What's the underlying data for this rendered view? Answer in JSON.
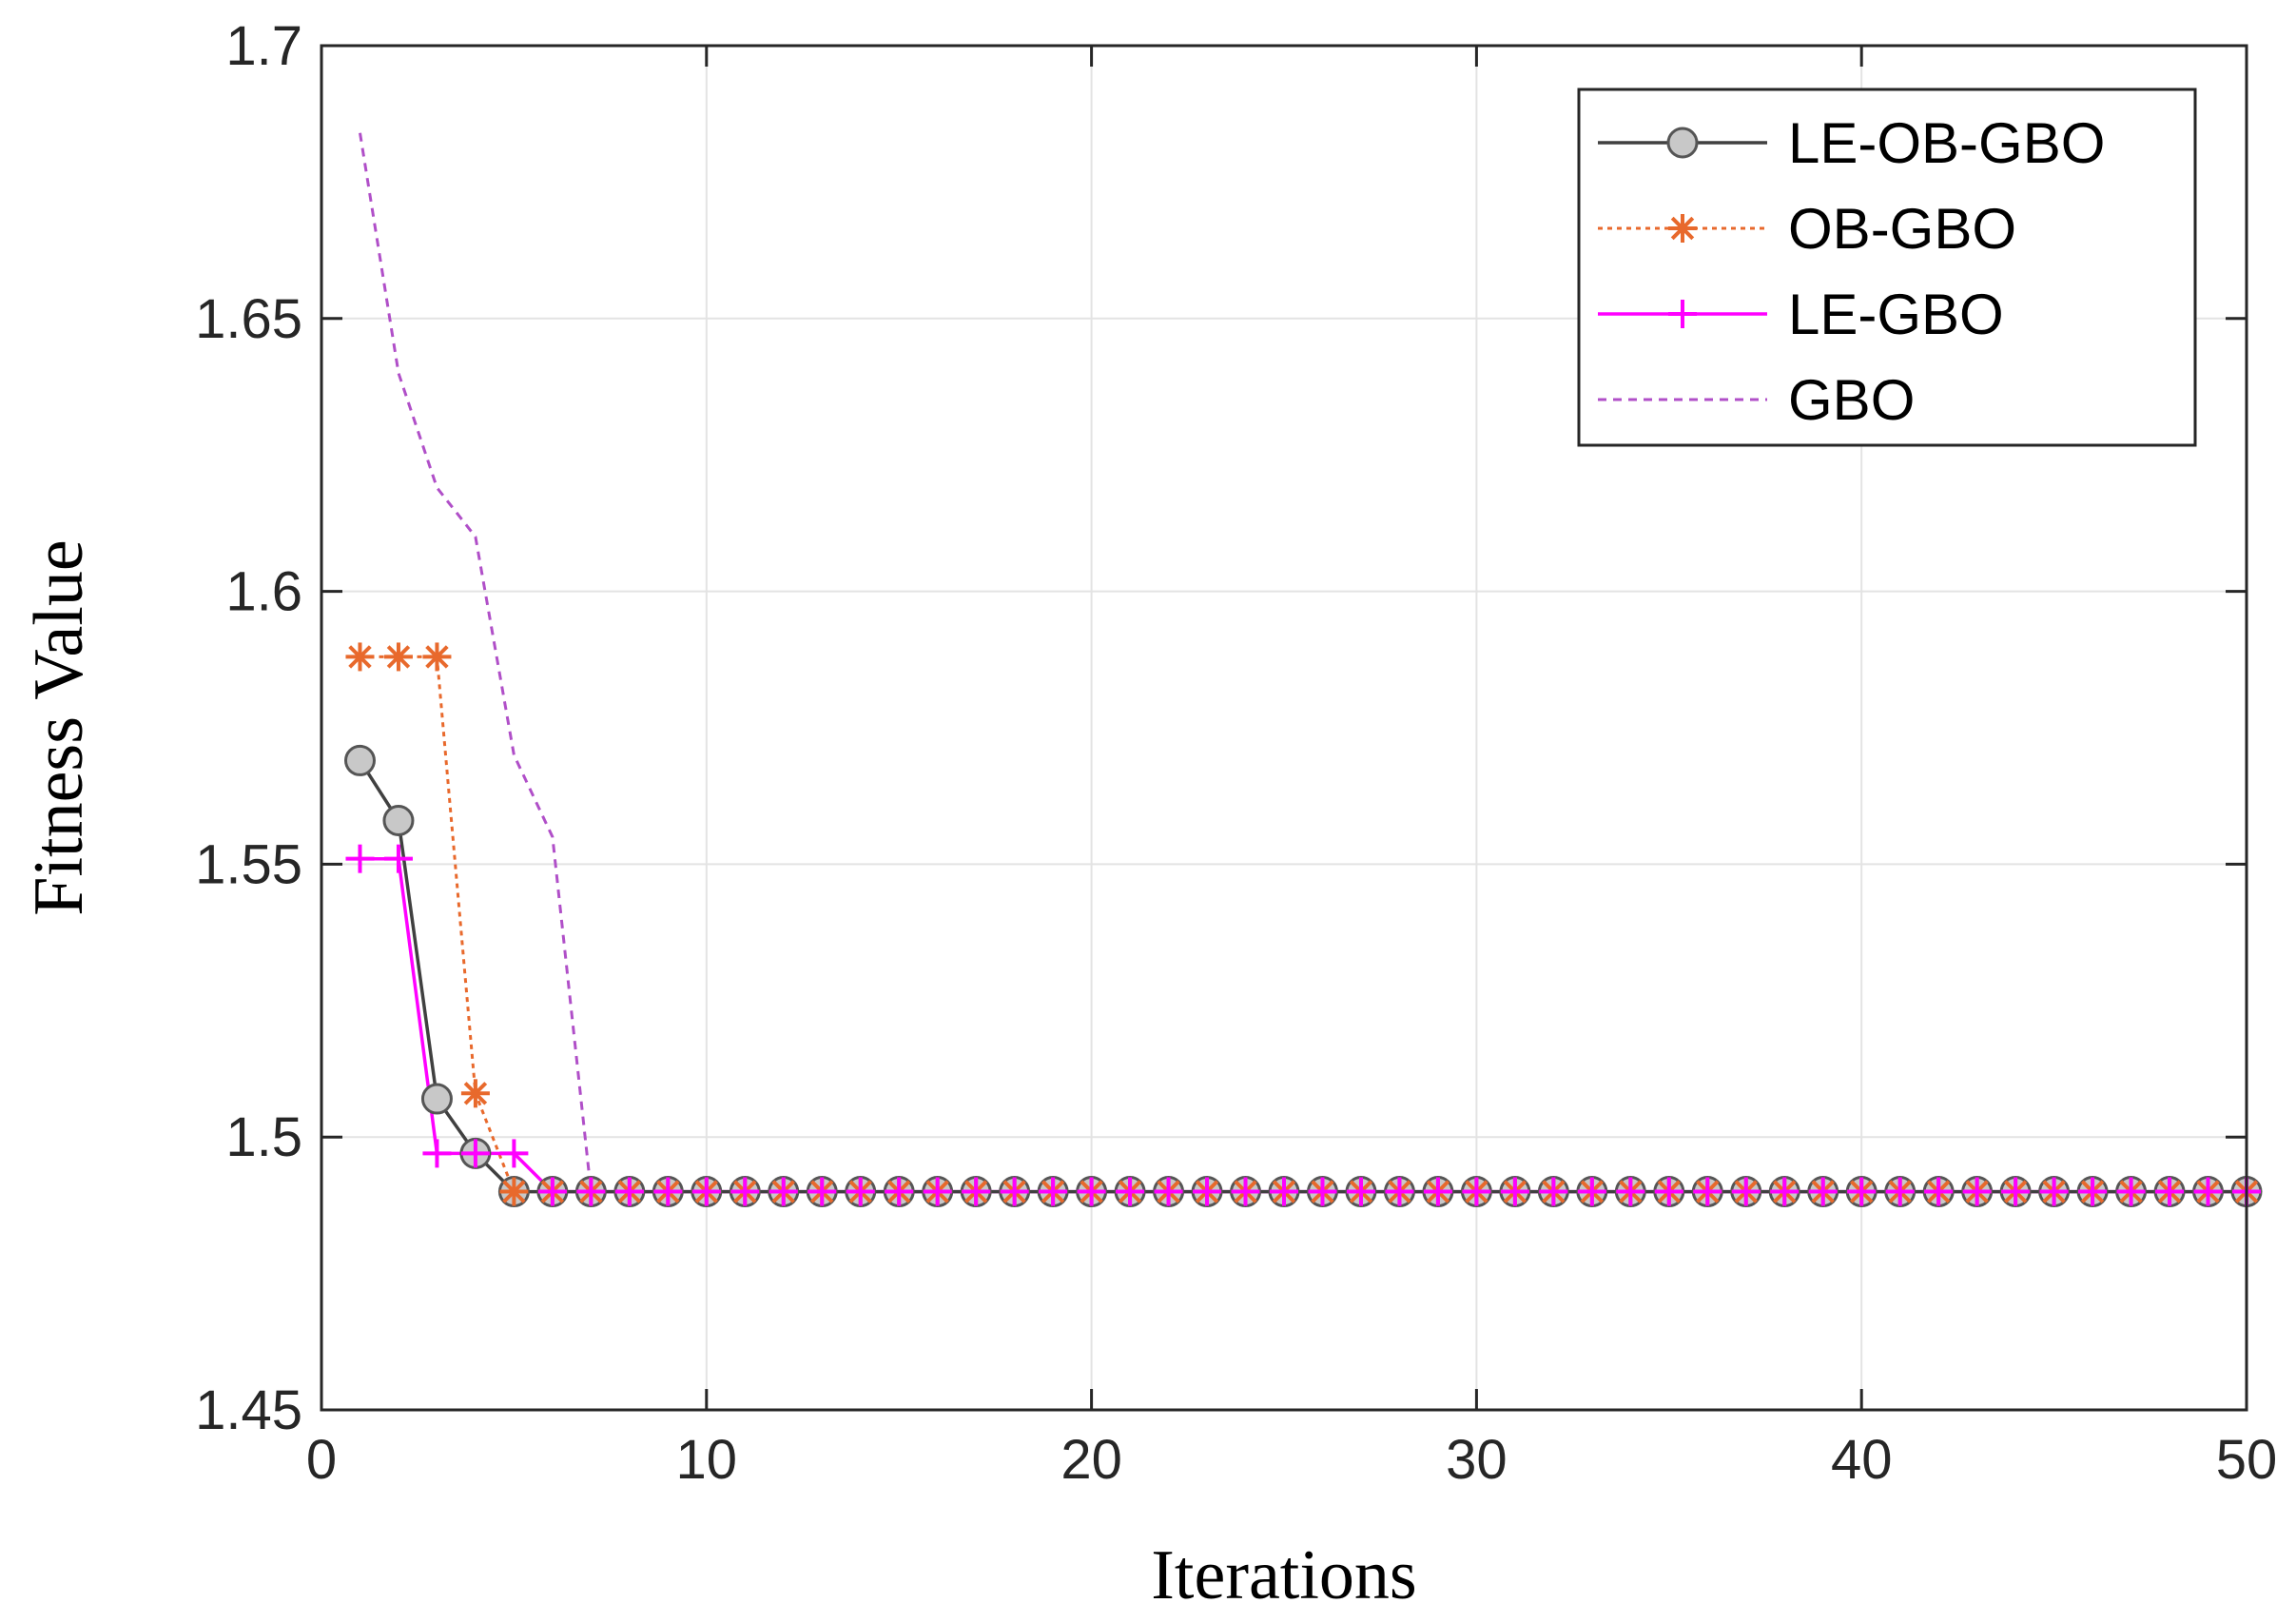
{
  "chart_data": {
    "type": "line",
    "title": "",
    "xlabel": "Iterations",
    "ylabel": "Fitness Value",
    "xlim": [
      0,
      50
    ],
    "ylim": [
      1.45,
      1.7
    ],
    "xticks": [
      0,
      10,
      20,
      30,
      40,
      50
    ],
    "xtick_labels": [
      "0",
      "10",
      "20",
      "30",
      "40",
      "50"
    ],
    "yticks": [
      1.45,
      1.5,
      1.55,
      1.6,
      1.65,
      1.7
    ],
    "ytick_labels": [
      "1.45",
      "1.5",
      "1.55",
      "1.6",
      "1.65",
      "1.7"
    ],
    "grid": true,
    "legend_position": "top-right",
    "x": [
      1,
      2,
      3,
      4,
      5,
      6,
      7,
      8,
      9,
      10,
      11,
      12,
      13,
      14,
      15,
      16,
      17,
      18,
      19,
      20,
      21,
      22,
      23,
      24,
      25,
      26,
      27,
      28,
      29,
      30,
      31,
      32,
      33,
      34,
      35,
      36,
      37,
      38,
      39,
      40,
      41,
      42,
      43,
      44,
      45,
      46,
      47,
      48,
      49,
      50
    ],
    "series": [
      {
        "name": "LE-OB-GBO",
        "color": "#404040",
        "line_style": "solid",
        "marker": "circle",
        "values": [
          1.569,
          1.558,
          1.507,
          1.497,
          1.49,
          1.49,
          1.49,
          1.49,
          1.49,
          1.49,
          1.49,
          1.49,
          1.49,
          1.49,
          1.49,
          1.49,
          1.49,
          1.49,
          1.49,
          1.49,
          1.49,
          1.49,
          1.49,
          1.49,
          1.49,
          1.49,
          1.49,
          1.49,
          1.49,
          1.49,
          1.49,
          1.49,
          1.49,
          1.49,
          1.49,
          1.49,
          1.49,
          1.49,
          1.49,
          1.49,
          1.49,
          1.49,
          1.49,
          1.49,
          1.49,
          1.49,
          1.49,
          1.49,
          1.49,
          1.49
        ]
      },
      {
        "name": "OB-GBO",
        "color": "#E8692C",
        "line_style": "dotted",
        "marker": "asterisk",
        "values": [
          1.588,
          1.588,
          1.588,
          1.508,
          1.49,
          1.49,
          1.49,
          1.49,
          1.49,
          1.49,
          1.49,
          1.49,
          1.49,
          1.49,
          1.49,
          1.49,
          1.49,
          1.49,
          1.49,
          1.49,
          1.49,
          1.49,
          1.49,
          1.49,
          1.49,
          1.49,
          1.49,
          1.49,
          1.49,
          1.49,
          1.49,
          1.49,
          1.49,
          1.49,
          1.49,
          1.49,
          1.49,
          1.49,
          1.49,
          1.49,
          1.49,
          1.49,
          1.49,
          1.49,
          1.49,
          1.49,
          1.49,
          1.49,
          1.49,
          1.49
        ]
      },
      {
        "name": "LE-GBO",
        "color": "#FF00FF",
        "line_style": "solid",
        "marker": "plus",
        "values": [
          1.551,
          1.551,
          1.497,
          1.497,
          1.497,
          1.49,
          1.49,
          1.49,
          1.49,
          1.49,
          1.49,
          1.49,
          1.49,
          1.49,
          1.49,
          1.49,
          1.49,
          1.49,
          1.49,
          1.49,
          1.49,
          1.49,
          1.49,
          1.49,
          1.49,
          1.49,
          1.49,
          1.49,
          1.49,
          1.49,
          1.49,
          1.49,
          1.49,
          1.49,
          1.49,
          1.49,
          1.49,
          1.49,
          1.49,
          1.49,
          1.49,
          1.49,
          1.49,
          1.49,
          1.49,
          1.49,
          1.49,
          1.49,
          1.49,
          1.49
        ]
      },
      {
        "name": "GBO",
        "color": "#B04FC8",
        "line_style": "dashed",
        "marker": "none",
        "values": [
          1.684,
          1.64,
          1.619,
          1.61,
          1.57,
          1.555,
          1.49,
          1.49,
          1.49,
          1.49,
          1.49,
          1.49,
          1.49,
          1.49,
          1.49,
          1.49,
          1.49,
          1.49,
          1.49,
          1.49,
          1.49,
          1.49,
          1.49,
          1.49,
          1.49,
          1.49,
          1.49,
          1.49,
          1.49,
          1.49,
          1.49,
          1.49,
          1.49,
          1.49,
          1.49,
          1.49,
          1.49,
          1.49,
          1.49,
          1.49,
          1.49,
          1.49,
          1.49,
          1.49,
          1.49,
          1.49,
          1.49,
          1.49,
          1.49,
          1.49
        ]
      }
    ]
  }
}
